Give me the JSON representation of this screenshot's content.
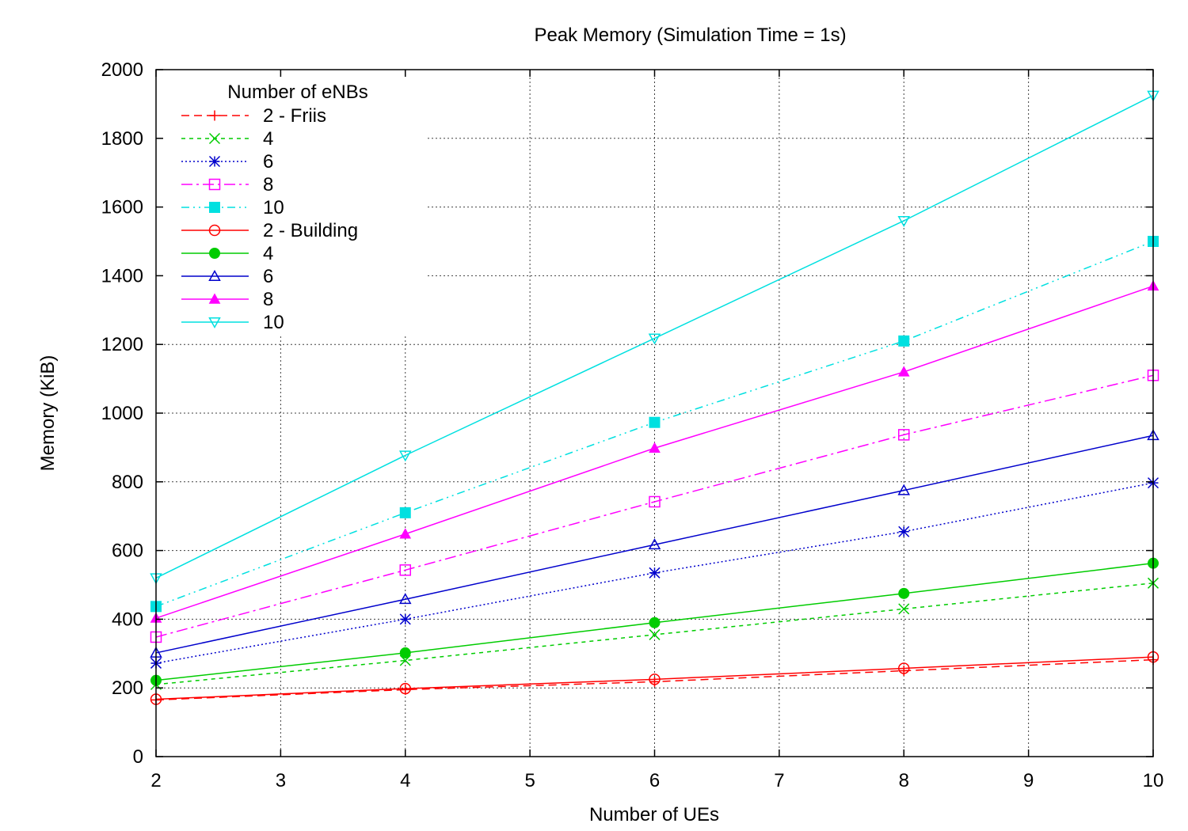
{
  "chart_data": {
    "type": "line",
    "title": "Peak Memory (Simulation Time = 1s)",
    "xlabel": "Number of UEs",
    "ylabel": "Memory (KiB)",
    "xlim": [
      2,
      10
    ],
    "ylim": [
      0,
      2000
    ],
    "xticks": [
      "2",
      "3",
      "4",
      "5",
      "6",
      "7",
      "8",
      "9",
      "10"
    ],
    "yticks": [
      "0",
      "200",
      "400",
      "600",
      "800",
      "1000",
      "1200",
      "1400",
      "1600",
      "1800",
      "2000"
    ],
    "grid": true,
    "legend_title": "Number of eNBs",
    "legend_position": "top-left",
    "x": [
      2,
      4,
      6,
      8,
      10
    ],
    "series": [
      {
        "name": "2 - Friis",
        "color": "#ff0000",
        "dash": "10 6",
        "marker": "plus",
        "values": [
          165,
          195,
          218,
          250,
          282
        ]
      },
      {
        "name": "4",
        "color": "#00cc00",
        "dash": "5 5",
        "marker": "cross",
        "values": [
          210,
          280,
          355,
          430,
          505
        ]
      },
      {
        "name": "6",
        "color": "#0000cc",
        "dash": "2 3",
        "marker": "star",
        "values": [
          272,
          400,
          535,
          655,
          797
        ]
      },
      {
        "name": "8",
        "color": "#ff00ff",
        "dash": "14 5 3 5",
        "marker": "square-open",
        "values": [
          348,
          543,
          742,
          937,
          1110
        ]
      },
      {
        "name": "10",
        "color": "#00e0e0",
        "dash": "10 5 2 5 2 5",
        "marker": "square-filled",
        "values": [
          437,
          710,
          973,
          1210,
          1500
        ]
      },
      {
        "name": "2 - Building",
        "color": "#ff0000",
        "dash": "",
        "marker": "circle-open",
        "values": [
          167,
          198,
          225,
          257,
          290
        ]
      },
      {
        "name": "4",
        "color": "#00cc00",
        "dash": "",
        "marker": "circle-filled",
        "values": [
          222,
          302,
          390,
          475,
          563
        ]
      },
      {
        "name": "6",
        "color": "#0000cc",
        "dash": "",
        "marker": "triangle-open",
        "values": [
          302,
          458,
          617,
          775,
          935
        ]
      },
      {
        "name": "8",
        "color": "#ff00ff",
        "dash": "",
        "marker": "triangle-filled",
        "values": [
          403,
          648,
          898,
          1120,
          1370
        ]
      },
      {
        "name": "10",
        "color": "#00e0e0",
        "dash": "",
        "marker": "triangle-down-open",
        "values": [
          520,
          877,
          1218,
          1560,
          1925
        ]
      }
    ]
  }
}
